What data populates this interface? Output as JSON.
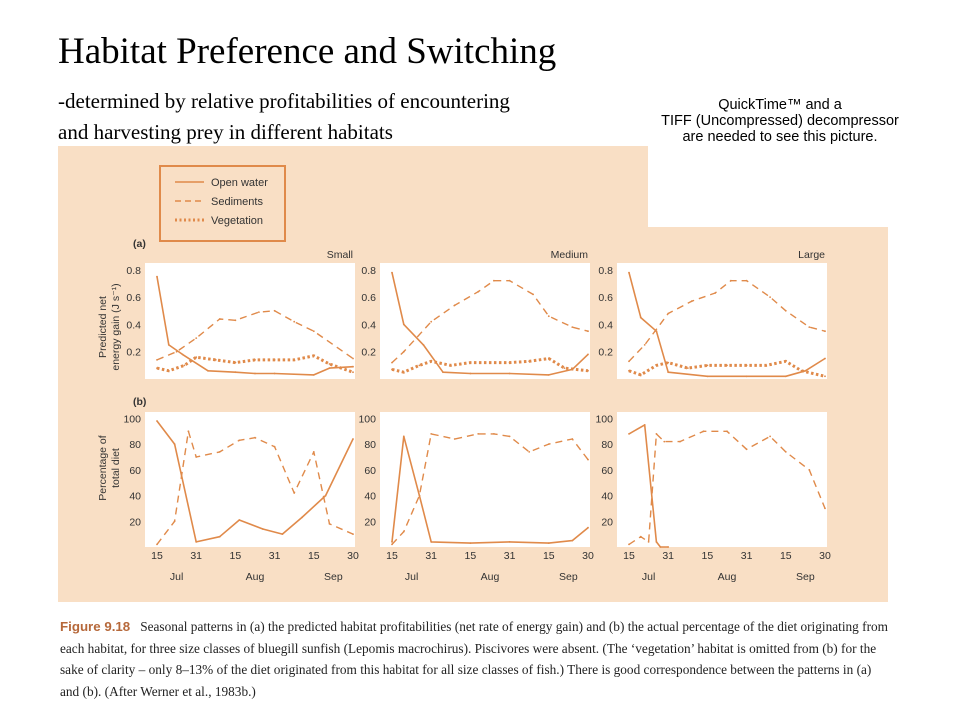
{
  "slide": {
    "title": "Habitat Preference and Switching",
    "subtitle_line1": "-determined by relative profitabilities of encountering",
    "subtitle_line2": "and harvesting prey in different habitats",
    "quicktime_line1": "QuickTime™ and a",
    "quicktime_line2": "TIFF (Uncompressed) decompressor",
    "quicktime_line3": "are needed to see this picture."
  },
  "colors": {
    "panel_bg": "#f9dfc5",
    "plot_bg": "#ffffff",
    "series": "#e08a4a",
    "text": "#333333"
  },
  "caption": {
    "label": "Figure 9.18",
    "text": "Seasonal patterns in (a) the predicted habitat profitabilities (net rate of energy gain) and (b) the actual percentage of the diet originating from each habitat, for three size classes of bluegill sunfish (Lepomis macrochirus). Piscivores were absent. (The ‘vegetation’ habitat is omitted from (b) for the sake of clarity – only 8–13% of the diet originated from this habitat for all size classes of fish.) There is good correspondence between the patterns in (a) and (b). (After Werner et al., 1983b.)"
  },
  "chart_data": {
    "type": "line",
    "legend": [
      {
        "name": "Open water",
        "style": "solid"
      },
      {
        "name": "Sediments",
        "style": "dashed"
      },
      {
        "name": "Vegetation",
        "style": "dotted"
      }
    ],
    "legend_placement": "top-left",
    "row_labels": [
      "(a)",
      "(b)"
    ],
    "panel_titles": [
      "Small",
      "Medium",
      "Large"
    ],
    "ylabel_a_line1": "Predicted net",
    "ylabel_a_line2": "energy gain (J s⁻¹)",
    "ylabel_b_line1": "Percentage of",
    "ylabel_b_line2": "total diet",
    "x_ticks": [
      "15",
      "31",
      "15",
      "31",
      "15",
      "30"
    ],
    "x_months": [
      "Jul",
      "Aug",
      "Sep"
    ],
    "ylim_a": [
      0,
      0.85
    ],
    "yticks_a": [
      "0.8",
      "0.6",
      "0.4",
      "0.2"
    ],
    "ylim_b": [
      0,
      105
    ],
    "yticks_b": [
      "100",
      "80",
      "60",
      "40",
      "20"
    ],
    "row_a": [
      {
        "panel": "Small",
        "series": [
          {
            "name": "Open water",
            "x": [
              0.0,
              0.3,
              0.65,
              1.3,
              2.0,
              2.5,
              3.0,
              4.0,
              4.4,
              5.0
            ],
            "y": [
              0.75,
              0.25,
              0.18,
              0.06,
              0.05,
              0.04,
              0.04,
              0.03,
              0.08,
              0.09
            ]
          },
          {
            "name": "Sediments",
            "x": [
              0.0,
              0.5,
              1.0,
              1.6,
              2.0,
              2.6,
              3.0,
              3.5,
              4.0,
              5.0
            ],
            "y": [
              0.14,
              0.2,
              0.3,
              0.44,
              0.43,
              0.49,
              0.5,
              0.42,
              0.35,
              0.15
            ]
          },
          {
            "name": "Vegetation",
            "x": [
              0.0,
              0.3,
              0.7,
              1.0,
              1.5,
              2.0,
              2.5,
              3.0,
              3.5,
              4.0,
              4.4,
              5.0
            ],
            "y": [
              0.08,
              0.06,
              0.1,
              0.16,
              0.14,
              0.12,
              0.14,
              0.14,
              0.14,
              0.17,
              0.11,
              0.05
            ]
          }
        ]
      },
      {
        "panel": "Medium",
        "series": [
          {
            "name": "Open water",
            "x": [
              0.0,
              0.3,
              0.8,
              1.3,
              2.0,
              3.0,
              4.0,
              4.6,
              5.0
            ],
            "y": [
              0.78,
              0.4,
              0.25,
              0.05,
              0.04,
              0.04,
              0.03,
              0.07,
              0.18
            ]
          },
          {
            "name": "Sediments",
            "x": [
              0.0,
              0.3,
              1.0,
              1.6,
              2.2,
              2.6,
              3.0,
              3.6,
              4.0,
              4.6,
              5.0
            ],
            "y": [
              0.12,
              0.2,
              0.42,
              0.54,
              0.64,
              0.72,
              0.72,
              0.62,
              0.46,
              0.38,
              0.35
            ]
          },
          {
            "name": "Vegetation",
            "x": [
              0.0,
              0.3,
              0.7,
              1.0,
              1.5,
              2.0,
              2.5,
              3.0,
              3.5,
              4.0,
              4.4,
              5.0
            ],
            "y": [
              0.07,
              0.05,
              0.1,
              0.13,
              0.1,
              0.12,
              0.12,
              0.12,
              0.13,
              0.15,
              0.08,
              0.06
            ]
          }
        ]
      },
      {
        "panel": "Large",
        "series": [
          {
            "name": "Open water",
            "x": [
              0.0,
              0.3,
              0.7,
              1.0,
              2.0,
              3.0,
              4.0,
              4.5,
              5.0
            ],
            "y": [
              0.78,
              0.45,
              0.35,
              0.05,
              0.02,
              0.02,
              0.02,
              0.06,
              0.15
            ]
          },
          {
            "name": "Sediments",
            "x": [
              0.0,
              0.4,
              1.0,
              1.6,
              2.2,
              2.6,
              3.0,
              3.6,
              4.0,
              4.6,
              5.0
            ],
            "y": [
              0.13,
              0.25,
              0.48,
              0.57,
              0.63,
              0.72,
              0.72,
              0.6,
              0.5,
              0.38,
              0.35
            ]
          },
          {
            "name": "Vegetation",
            "x": [
              0.0,
              0.3,
              0.7,
              1.0,
              1.5,
              2.0,
              2.5,
              3.0,
              3.5,
              4.0,
              4.4,
              5.0
            ],
            "y": [
              0.06,
              0.03,
              0.1,
              0.12,
              0.08,
              0.1,
              0.1,
              0.1,
              0.1,
              0.13,
              0.06,
              0.02
            ]
          }
        ]
      }
    ],
    "row_b": [
      {
        "panel": "Small",
        "series": [
          {
            "name": "Open water",
            "x": [
              0.0,
              0.45,
              1.0,
              1.6,
              2.1,
              2.7,
              3.2,
              3.7,
              4.3,
              5.0
            ],
            "y": [
              98,
              80,
              4,
              8,
              21,
              14,
              10,
              23,
              40,
              84
            ]
          },
          {
            "name": "Sediments",
            "x": [
              0.0,
              0.45,
              0.8,
              1.0,
              1.6,
              2.1,
              2.5,
              3.0,
              3.5,
              4.0,
              4.4,
              5.0
            ],
            "y": [
              2,
              20,
              90,
              70,
              74,
              83,
              85,
              78,
              42,
              74,
              18,
              10
            ]
          }
        ]
      },
      {
        "panel": "Medium",
        "series": [
          {
            "name": "Open water",
            "x": [
              0.0,
              0.3,
              0.7,
              1.0,
              2.0,
              3.0,
              4.0,
              4.6,
              5.0
            ],
            "y": [
              4,
              86,
              40,
              4,
              3,
              4,
              3,
              5,
              15
            ]
          },
          {
            "name": "Sediments",
            "x": [
              0.0,
              0.3,
              0.7,
              1.0,
              1.6,
              2.2,
              2.6,
              3.0,
              3.5,
              4.0,
              4.6,
              5.0
            ],
            "y": [
              2,
              12,
              40,
              88,
              84,
              88,
              88,
              86,
              74,
              80,
              84,
              68
            ]
          }
        ]
      },
      {
        "panel": "Large",
        "series": [
          {
            "name": "Open water",
            "x": [
              0.0,
              0.4,
              0.7,
              0.8,
              1.0
            ],
            "y": [
              88,
              95,
              4,
              0,
              0
            ]
          },
          {
            "name": "Sediments",
            "x": [
              0.0,
              0.3,
              0.5,
              0.7,
              0.9,
              1.3,
              1.9,
              2.5,
              3.0,
              3.6,
              4.0,
              4.6,
              5.0
            ],
            "y": [
              2,
              8,
              4,
              88,
              82,
              82,
              90,
              90,
              76,
              86,
              74,
              60,
              30
            ]
          }
        ]
      }
    ]
  }
}
